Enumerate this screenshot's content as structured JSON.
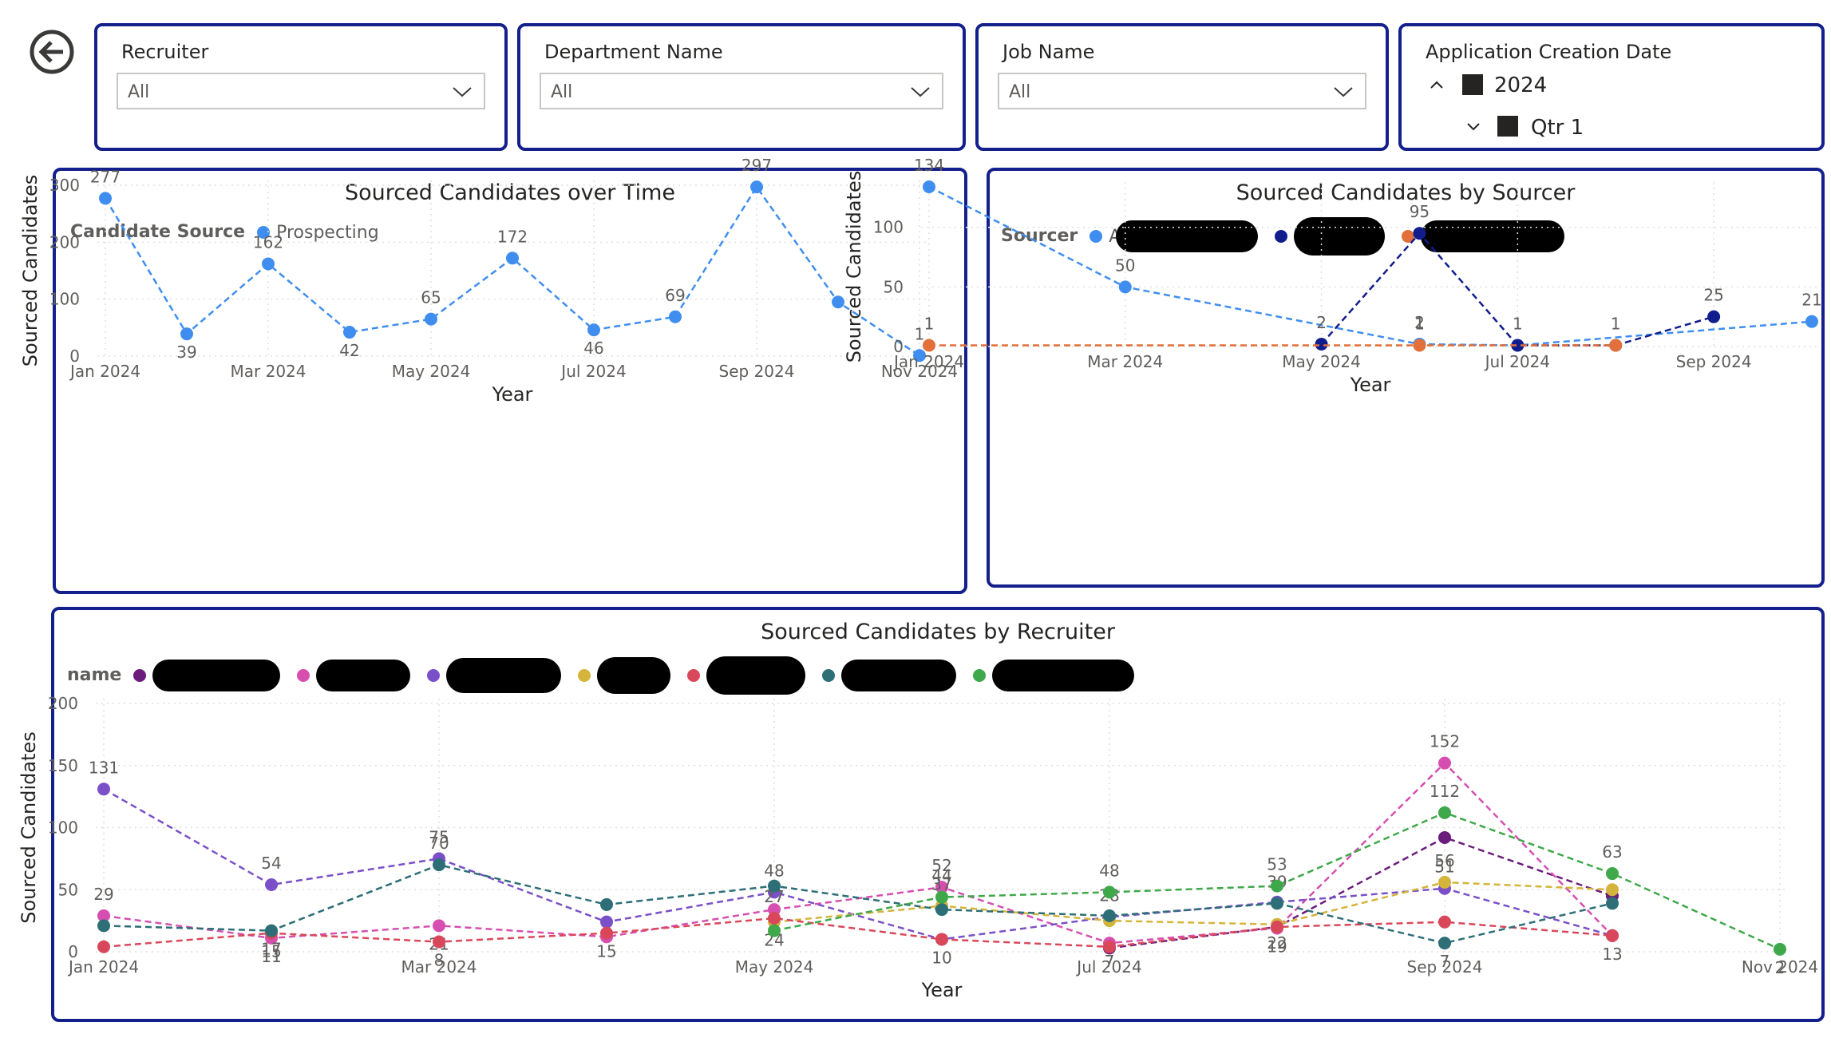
{
  "slicers": {
    "recruiter": {
      "title": "Recruiter",
      "value": "All"
    },
    "department": {
      "title": "Department Name",
      "value": "All"
    },
    "job": {
      "title": "Job Name",
      "value": "All"
    },
    "date": {
      "title": "Application Creation Date",
      "year_label": "2024",
      "quarter_label": "Qtr 1"
    }
  },
  "colors": {
    "border": "#13208c",
    "prospecting": "#3f8eef",
    "sourcer_a": "#3f8eef",
    "sourcer_b": "#111d8c",
    "sourcer_c": "#e2703a"
  },
  "icons": {
    "back": "arrow-left-circle-icon",
    "dropdown": "chevron-down-icon"
  },
  "chart_data": [
    {
      "type": "line",
      "title": "Sourced Candidates over Time",
      "legend_title": "Candidate Source",
      "legend_labels": [
        "Prospecting"
      ],
      "xlabel": "Year",
      "ylabel": "Sourced Candidates",
      "ylim": [
        0,
        300
      ],
      "yticks": [
        "0",
        "100",
        "200",
        "300"
      ],
      "xticks": [
        "Jan 2024",
        "Mar 2024",
        "May 2024",
        "Jul 2024",
        "Sep 2024",
        "Nov 2024"
      ],
      "x": [
        "2024-01",
        "2024-02",
        "2024-03",
        "2024-04",
        "2024-05",
        "2024-06",
        "2024-07",
        "2024-08",
        "2024-09",
        "2024-10",
        "2024-11"
      ],
      "series": [
        {
          "color": "#3f8eef",
          "values": [
            277,
            39,
            162,
            42,
            65,
            172,
            46,
            69,
            297,
            95,
            1
          ],
          "labels": [
            "277",
            "39",
            "162",
            "42",
            "65",
            "172",
            "46",
            "69",
            "297",
            "",
            "1"
          ]
        }
      ]
    },
    {
      "type": "line",
      "title": "Sourced Candidates by Sourcer",
      "legend_title": "Sourcer",
      "legend_labels": [
        "A",
        "",
        ""
      ],
      "xlabel": "Year",
      "ylabel": "Sourced Candidates",
      "ylim": [
        0,
        134
      ],
      "yticks": [
        "0",
        "50",
        "100"
      ],
      "xticks": [
        "Jan 2024",
        "Mar 2024",
        "May 2024",
        "Jul 2024",
        "Sep 2024"
      ],
      "x": [
        "2024-01",
        "2024-03",
        "2024-05",
        "2024-06",
        "2024-07",
        "2024-08",
        "2024-09",
        "2024-10"
      ],
      "series": [
        {
          "color": "#3f8eef",
          "values": [
            134,
            50,
            null,
            2,
            1,
            null,
            null,
            21
          ],
          "labels": [
            "134",
            "50",
            "",
            "2",
            "",
            "",
            "",
            "21"
          ]
        },
        {
          "color": "#111d8c",
          "values": [
            null,
            null,
            2,
            95,
            1,
            1,
            25,
            null
          ],
          "labels": [
            "",
            "",
            "2",
            "95",
            "1",
            "1",
            "25",
            ""
          ]
        },
        {
          "color": "#e2703a",
          "values": [
            1,
            null,
            null,
            1,
            null,
            1,
            null,
            null
          ],
          "labels": [
            "1",
            "",
            "",
            "1",
            "",
            "",
            "",
            ""
          ]
        }
      ]
    },
    {
      "type": "line",
      "title": "Sourced Candidates by Recruiter",
      "legend_title": "name",
      "xlabel": "Year",
      "ylabel": "Sourced Candidates",
      "ylim": [
        0,
        200
      ],
      "yticks": [
        "0",
        "50",
        "100",
        "150",
        "200"
      ],
      "xticks": [
        "Jan 2024",
        "Mar 2024",
        "May 2024",
        "Jul 2024",
        "Sep 2024",
        "Nov 2024"
      ],
      "x": [
        "2024-01",
        "2024-02",
        "2024-03",
        "2024-04",
        "2024-05",
        "2024-06",
        "2024-07",
        "2024-08",
        "2024-09",
        "2024-10",
        "2024-11"
      ],
      "series": [
        {
          "color": "#6b1d7e",
          "values": [
            null,
            null,
            null,
            null,
            null,
            null,
            3,
            20,
            92,
            45,
            null
          ],
          "labels": [
            "",
            "",
            "",
            "",
            "",
            "",
            "",
            "",
            "",
            "",
            ""
          ]
        },
        {
          "color": "#d64fb0",
          "values": [
            29,
            11,
            21,
            12,
            34,
            52,
            7,
            19,
            152,
            13,
            null
          ],
          "labels": [
            "29",
            "11",
            "21",
            "",
            "",
            "52",
            "7",
            "19",
            "152",
            "",
            ""
          ]
        },
        {
          "color": "#7a50c8",
          "values": [
            131,
            54,
            75,
            24,
            48,
            10,
            28,
            40,
            51,
            13,
            null
          ],
          "labels": [
            "131",
            "54",
            "75",
            "",
            "48",
            "10",
            "28",
            "",
            "51",
            "",
            ""
          ]
        },
        {
          "color": "#d4b43a",
          "values": [
            null,
            null,
            null,
            null,
            24,
            37,
            25,
            22,
            56,
            50,
            null
          ],
          "labels": [
            "",
            "",
            "",
            "",
            "24",
            "37",
            "",
            "22",
            "56",
            "",
            ""
          ]
        },
        {
          "color": "#d9485a",
          "values": [
            4,
            15,
            8,
            15,
            27,
            10,
            4,
            20,
            24,
            13,
            null
          ],
          "labels": [
            "",
            "15",
            "8",
            "15",
            "27",
            "",
            "",
            "",
            "",
            "13",
            ""
          ]
        },
        {
          "color": "#2d6e77",
          "values": [
            21,
            17,
            70,
            38,
            53,
            34,
            29,
            39,
            7,
            39,
            null
          ],
          "labels": [
            "",
            "17",
            "70",
            "",
            "",
            "",
            "",
            "39",
            "7",
            "",
            ""
          ]
        },
        {
          "color": "#3fa84a",
          "values": [
            null,
            null,
            null,
            null,
            17,
            44,
            48,
            53,
            112,
            63,
            2
          ],
          "labels": [
            "",
            "",
            "",
            "",
            "",
            "44",
            "48",
            "53",
            "112",
            "63",
            "2"
          ]
        }
      ]
    }
  ]
}
